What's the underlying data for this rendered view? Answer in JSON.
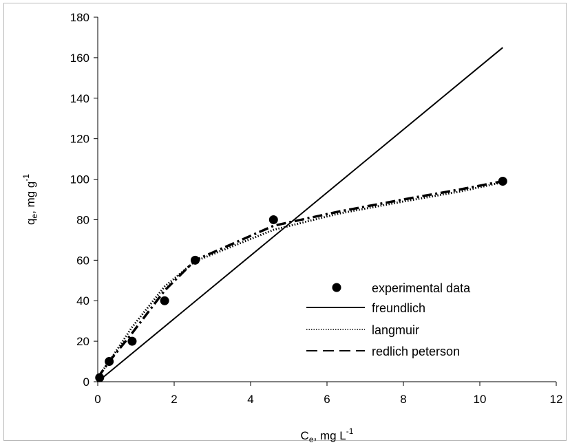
{
  "chart_data": {
    "type": "scatter",
    "title": "",
    "xlabel": {
      "main": "C",
      "sub": "e",
      "rest": ", mg L",
      "sup": "-1"
    },
    "ylabel": {
      "main": "q",
      "sub": "e",
      "rest": ", mg g",
      "sup": "-1"
    },
    "xlim": [
      0,
      12
    ],
    "ylim": [
      0,
      180
    ],
    "xticks": [
      0,
      2,
      4,
      6,
      8,
      10,
      12
    ],
    "yticks": [
      0,
      20,
      40,
      60,
      80,
      100,
      120,
      140,
      160,
      180
    ],
    "grid": false,
    "legend_position": "bottom-right",
    "series": [
      {
        "name": "experimental data",
        "style": "marker",
        "color": "#000000",
        "x": [
          0.05,
          0.3,
          0.9,
          1.75,
          2.55,
          4.6,
          10.6
        ],
        "y": [
          2,
          10,
          20,
          40,
          60,
          80,
          99
        ]
      },
      {
        "name": "freundlich",
        "style": "solid",
        "color": "#000000",
        "x": [
          0,
          10.6
        ],
        "y": [
          0,
          165
        ]
      },
      {
        "name": "langmuir",
        "style": "dotted",
        "color": "#000000",
        "x": [
          0,
          0.3,
          0.9,
          1.75,
          2.55,
          4.6,
          6.3,
          8,
          9.5,
          10.6
        ],
        "y": [
          2,
          10,
          27,
          47,
          59.5,
          75,
          83,
          89,
          94,
          98.5
        ]
      },
      {
        "name": "redlich peterson",
        "style": "dashed",
        "color": "#000000",
        "x": [
          0,
          0.3,
          0.9,
          1.75,
          2.55,
          4.6,
          6.3,
          8,
          9.5,
          10.6
        ],
        "y": [
          2,
          10,
          24,
          45,
          60,
          77,
          84,
          90,
          95,
          99
        ]
      }
    ]
  }
}
